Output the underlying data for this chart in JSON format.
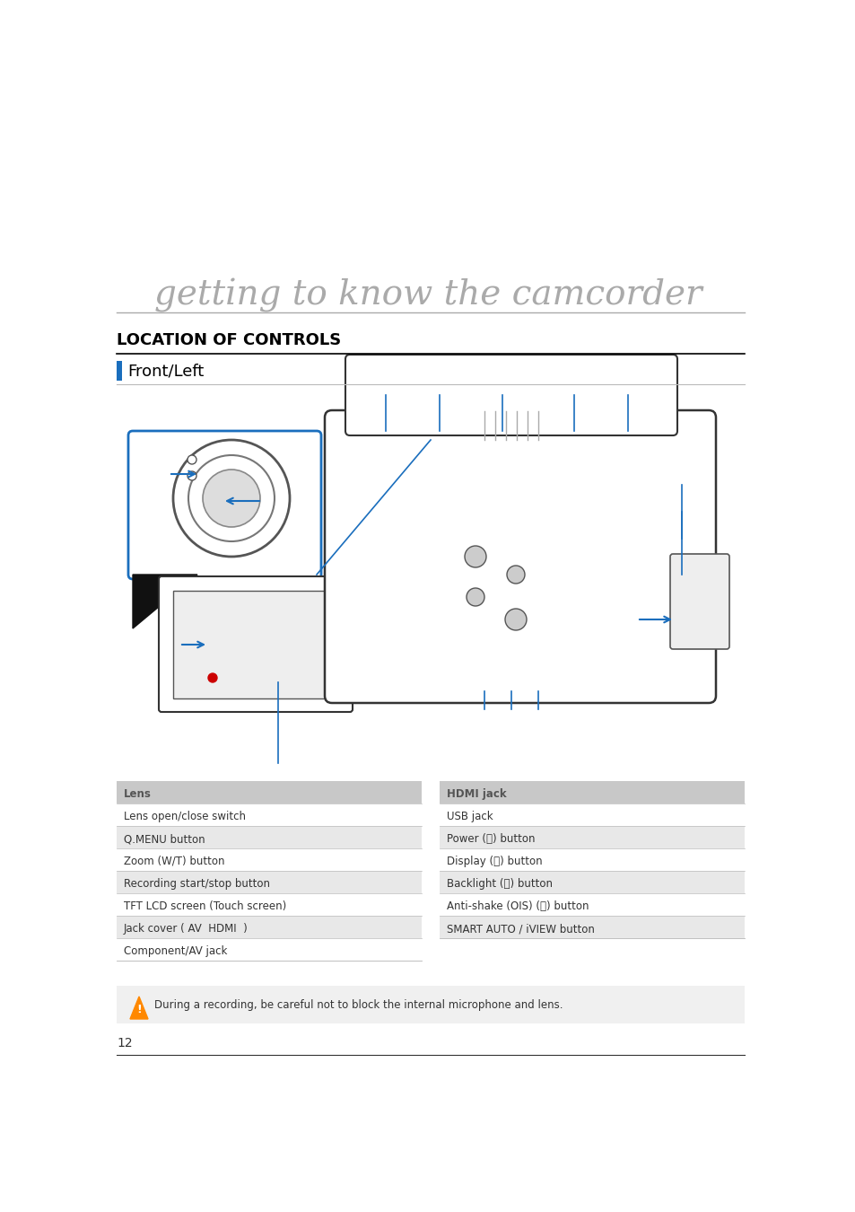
{
  "bg_color": "#ffffff",
  "title": "getting to know the camcorder",
  "title_color": "#aaaaaa",
  "title_underline_color": "#aaaaaa",
  "section_title": "LOCATION OF CONTROLS",
  "section_title_color": "#000000",
  "subsection_title": "Front/Left",
  "subsection_bar_color": "#1a6ebd",
  "left_items": [
    [
      "#c8c8c8",
      "Lens"
    ],
    [
      "#ffffff",
      "Lens open/close switch"
    ],
    [
      "#e8e8e8",
      "Q.MENU button"
    ],
    [
      "#ffffff",
      "Zoom (W/T) button"
    ],
    [
      "#e8e8e8",
      "Recording start/stop button"
    ],
    [
      "#ffffff",
      "TFT LCD screen (Touch screen)"
    ],
    [
      "#e8e8e8",
      "Jack cover ( AV  HDMI  )"
    ],
    [
      "#ffffff",
      "Component/AV jack"
    ]
  ],
  "right_items": [
    [
      "#c8c8c8",
      "HDMI jack"
    ],
    [
      "#ffffff",
      "USB jack"
    ],
    [
      "#e8e8e8",
      "Power (Ⓒ) button"
    ],
    [
      "#ffffff",
      "Display (ⓓ) button"
    ],
    [
      "#e8e8e8",
      "Backlight (ⓑ) button"
    ],
    [
      "#ffffff",
      "Anti-shake (OIS) (ⓗ) button"
    ],
    [
      "#e8e8e8",
      "SMART AUTO / iVIEW button"
    ]
  ],
  "warning_text": "During a recording, be careful not to block the internal microphone and lens.",
  "page_number": "12",
  "arrow_color": "#1a6ebd",
  "line_color": "#1a6ebd"
}
